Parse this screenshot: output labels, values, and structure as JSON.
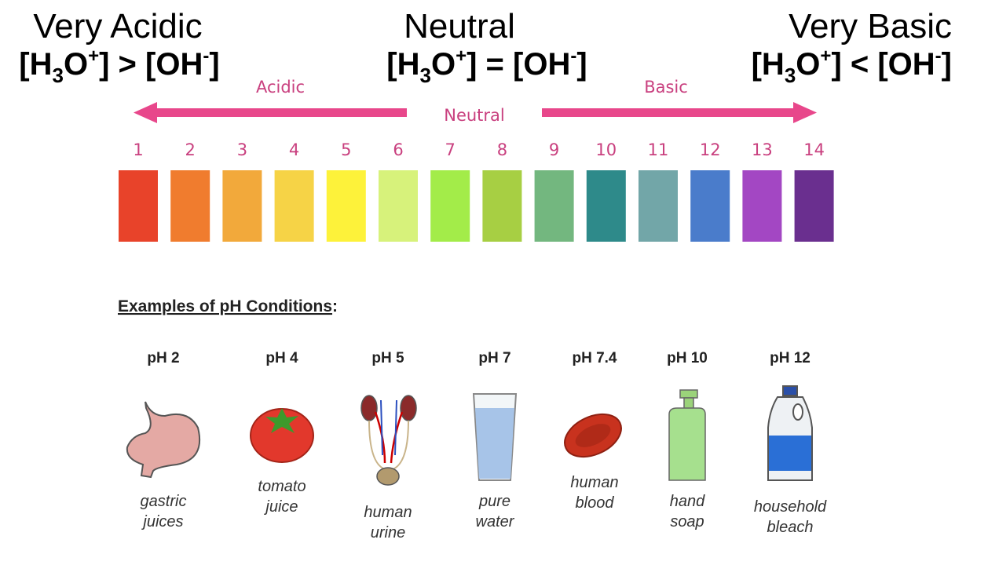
{
  "headers": [
    {
      "title": "Very Acidic",
      "formula": [
        "[H",
        "3",
        "O",
        "+",
        "] > [OH",
        "-",
        "]"
      ]
    },
    {
      "title": "Neutral",
      "formula": [
        "[H",
        "3",
        "O",
        "+",
        "] = [OH",
        "-",
        "]"
      ]
    },
    {
      "title": "Very Basic",
      "formula": [
        "[H",
        "3",
        "O",
        "+",
        "] < [OH",
        "-",
        "]"
      ]
    }
  ],
  "scale": {
    "acidic_label": "Acidic",
    "neutral_label": "Neutral",
    "basic_label": "Basic",
    "swatches": [
      {
        "label": 1,
        "color": "#e8432a"
      },
      {
        "label": 2,
        "color": "#f07c2e"
      },
      {
        "label": 3,
        "color": "#f2a93b"
      },
      {
        "label": 4,
        "color": "#f6d346"
      },
      {
        "label": 5,
        "color": "#fdf23a"
      },
      {
        "label": 6,
        "color": "#d7f27b"
      },
      {
        "label": 7,
        "color": "#a3ec49"
      },
      {
        "label": 8,
        "color": "#a7cf43"
      },
      {
        "label": 9,
        "color": "#73b77f"
      },
      {
        "label": 10,
        "color": "#2e8a8a"
      },
      {
        "label": 11,
        "color": "#72a6a8"
      },
      {
        "label": 12,
        "color": "#4a7ccb"
      },
      {
        "label": 13,
        "color": "#a347c3"
      },
      {
        "label": 14,
        "color": "#6a2f8f"
      }
    ]
  },
  "examples": {
    "title": "Examples of pH Conditions",
    "title_punct": ":",
    "items": [
      {
        "ph": "pH 2",
        "caption": [
          "gastric",
          "juices"
        ]
      },
      {
        "ph": "pH 4",
        "caption": [
          "tomato",
          "juice"
        ]
      },
      {
        "ph": "pH 5",
        "caption": [
          "human",
          "urine"
        ]
      },
      {
        "ph": "pH 7",
        "caption": [
          "pure",
          "water"
        ]
      },
      {
        "ph": "pH 7.4",
        "caption": [
          "human",
          "blood"
        ]
      },
      {
        "ph": "pH 10",
        "caption": [
          "hand",
          "soap"
        ]
      },
      {
        "ph": "pH 12",
        "caption": [
          "household",
          "bleach"
        ]
      }
    ]
  }
}
